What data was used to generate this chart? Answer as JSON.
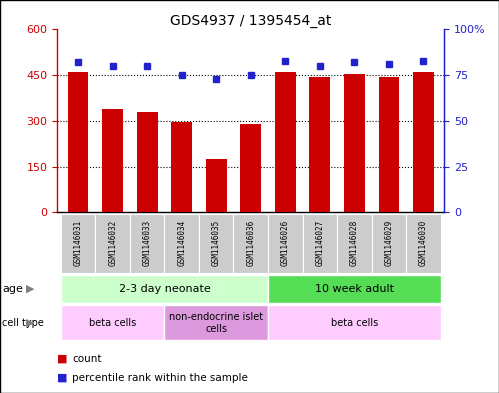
{
  "title": "GDS4937 / 1395454_at",
  "samples": [
    "GSM1146031",
    "GSM1146032",
    "GSM1146033",
    "GSM1146034",
    "GSM1146035",
    "GSM1146036",
    "GSM1146026",
    "GSM1146027",
    "GSM1146028",
    "GSM1146029",
    "GSM1146030"
  ],
  "counts": [
    460,
    340,
    330,
    295,
    175,
    290,
    462,
    443,
    455,
    443,
    462
  ],
  "percentiles": [
    82,
    80,
    80,
    75,
    73,
    75,
    83,
    80,
    82,
    81,
    83
  ],
  "bar_color": "#cc0000",
  "dot_color": "#2222cc",
  "ylim_left": [
    0,
    600
  ],
  "ylim_right": [
    0,
    100
  ],
  "yticks_left": [
    0,
    150,
    300,
    450,
    600
  ],
  "yticks_right": [
    0,
    25,
    50,
    75,
    100
  ],
  "yticklabels_left": [
    "0",
    "150",
    "300",
    "450",
    "600"
  ],
  "yticklabels_right": [
    "0",
    "25",
    "50",
    "75",
    "100%"
  ],
  "age_groups": [
    {
      "label": "2-3 day neonate",
      "start": 0,
      "end": 6,
      "color": "#ccffcc"
    },
    {
      "label": "10 week adult",
      "start": 6,
      "end": 11,
      "color": "#55dd55"
    }
  ],
  "cell_type_groups": [
    {
      "label": "beta cells",
      "start": 0,
      "end": 3,
      "color": "#ffccff"
    },
    {
      "label": "non-endocrine islet\ncells",
      "start": 3,
      "end": 6,
      "color": "#dd99dd"
    },
    {
      "label": "beta cells",
      "start": 6,
      "end": 11,
      "color": "#ffccff"
    }
  ],
  "legend_count_color": "#cc0000",
  "legend_dot_color": "#2222cc",
  "background_color": "#ffffff",
  "tick_label_bg": "#cccccc",
  "border_color": "#000000"
}
